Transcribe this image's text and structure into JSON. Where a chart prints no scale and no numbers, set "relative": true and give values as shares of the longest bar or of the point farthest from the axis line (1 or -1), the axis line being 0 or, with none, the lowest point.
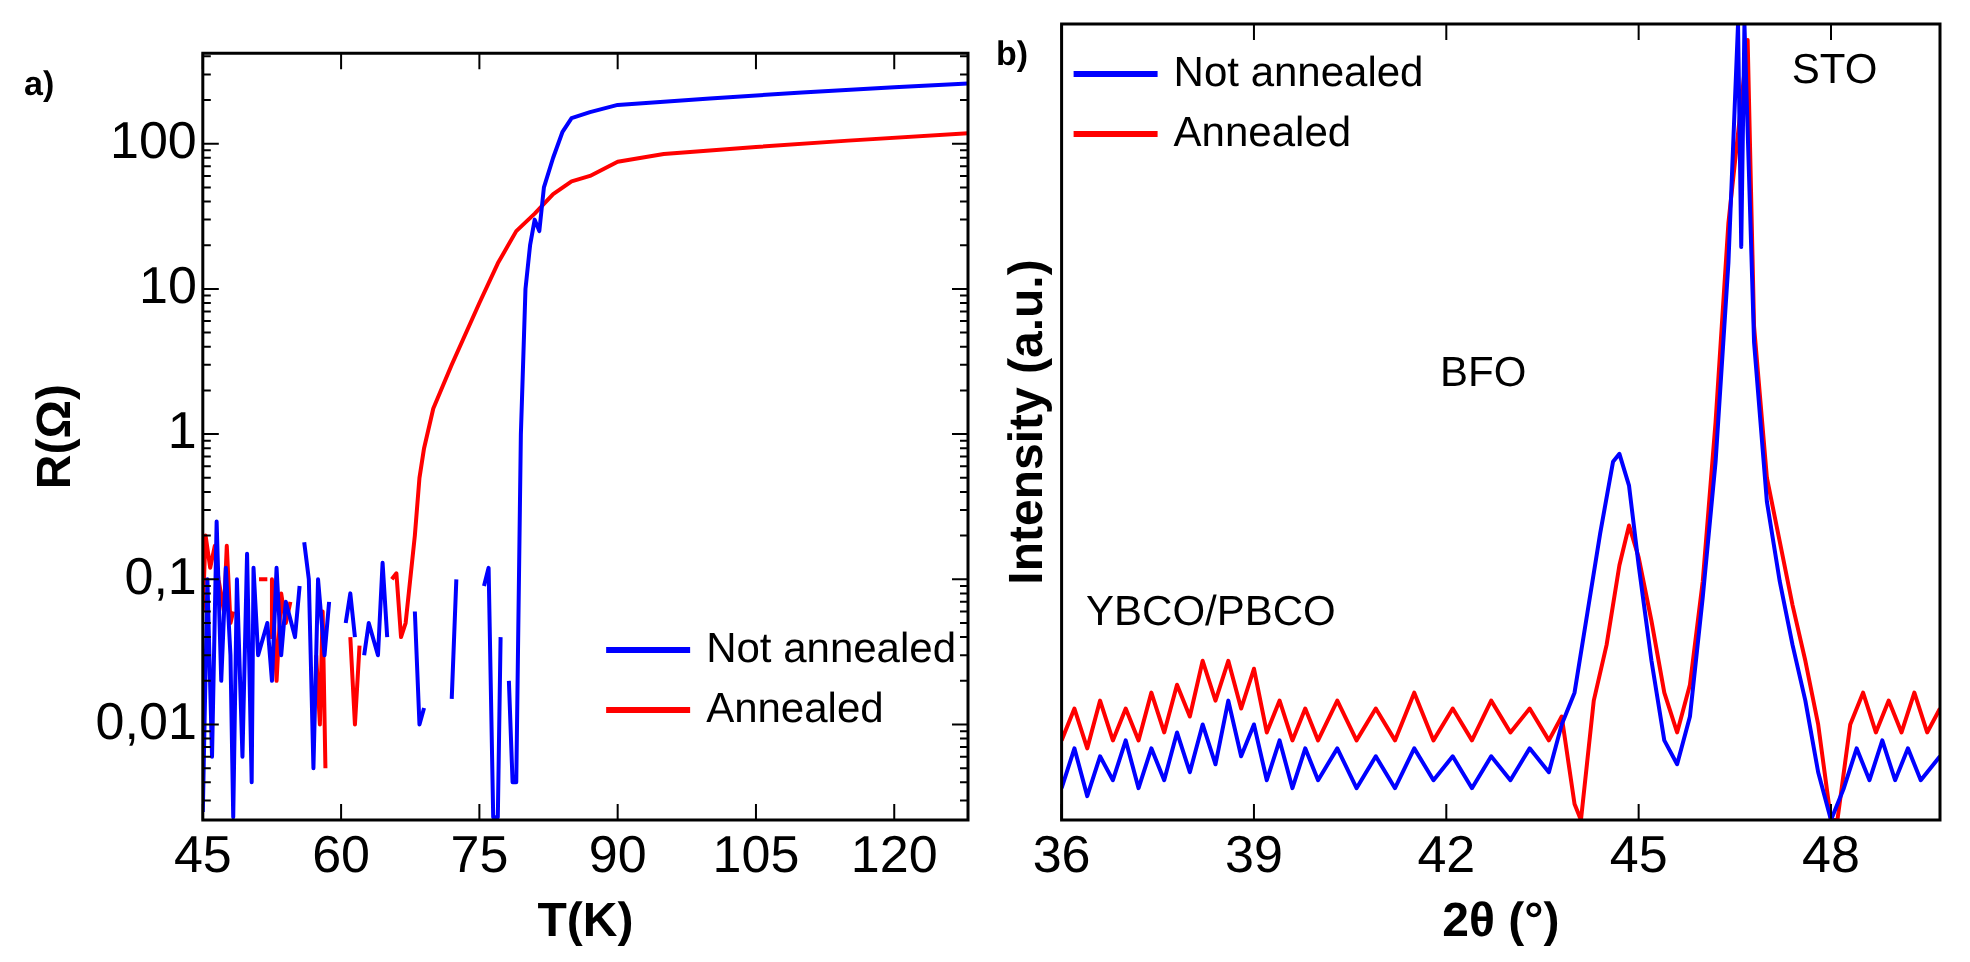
{
  "chart_data": [
    {
      "type": "line",
      "xlabel": "T(K)",
      "ylabel": "R(Ω)",
      "log": "y",
      "xlim": [
        45,
        128
      ],
      "xticks": [
        45,
        60,
        75,
        90,
        105,
        120
      ],
      "ylim": [
        0.0022,
        420
      ],
      "yticks": [
        {
          "value": 0.01,
          "label": "0,01"
        },
        {
          "value": 0.1,
          "label": "0,1"
        },
        1,
        10,
        100
      ],
      "legend": "bottom right",
      "grid": false,
      "marker": "none",
      "line_style": "solid",
      "annotations": [
        "a)"
      ],
      "series": [
        {
          "name": "Not annealed",
          "color": "#0000ff",
          "x": [
            45,
            45.5,
            46,
            46.5,
            47,
            47.5,
            48,
            48.3,
            48.7,
            49.3,
            49.8,
            50.3,
            50.5,
            51,
            52,
            52.5,
            53,
            53.5,
            54,
            55,
            55.5,
            55.7,
            56,
            56.5,
            57,
            57.5,
            58.2,
            58.7,
            59.5,
            60.5,
            61,
            61.5,
            62,
            62.5,
            63,
            64,
            64.5,
            65,
            66,
            68,
            68.5,
            69,
            70,
            72,
            72.5,
            74,
            75.5,
            76,
            76.5,
            77,
            77.3,
            77.8,
            78.2,
            78.6,
            79,
            79.5,
            80,
            80.5,
            81,
            81.5,
            82,
            83,
            84,
            85,
            87,
            90,
            100,
            110,
            120,
            128
          ],
          "values": [
            0.0025,
            0.1,
            0.006,
            0.25,
            0.02,
            0.12,
            0.03,
            0.0023,
            0.1,
            0.006,
            0.15,
            0.004,
            0.12,
            0.03,
            0.05,
            0.02,
            0.12,
            0.03,
            0.07,
            0.04,
            0.09,
            null,
            0.18,
            0.1,
            0.005,
            0.1,
            0.03,
            0.07,
            null,
            0.05,
            0.08,
            0.04,
            null,
            0.03,
            0.05,
            0.03,
            0.13,
            0.04,
            null,
            0.06,
            0.01,
            0.013,
            null,
            0.015,
            0.1,
            null,
            0.09,
            0.12,
            0.0023,
            0.0023,
            0.04,
            null,
            0.02,
            0.004,
            0.004,
            1,
            10,
            20,
            30,
            25,
            50,
            80,
            120,
            150,
            165,
            185,
            205,
            225,
            245,
            260
          ]
        },
        {
          "name": "Annealed",
          "color": "#ff0000",
          "x": [
            45,
            45.3,
            45.8,
            46.3,
            46.7,
            47.3,
            47.6,
            48,
            48.3,
            49,
            51.1,
            52,
            52.2,
            52.3,
            52.5,
            53,
            53.5,
            54,
            54.5,
            56,
            57.3,
            57.7,
            58,
            58.3,
            60,
            61,
            61.5,
            62,
            64,
            65.5,
            66,
            66.5,
            67,
            67.5,
            68,
            68.5,
            69,
            70,
            72,
            75,
            77,
            79,
            81,
            83,
            85,
            87,
            90,
            95,
            105,
            115,
            128
          ],
          "values": [
            0.06,
            0.2,
            0.12,
            0.17,
            0.1,
            0.06,
            0.17,
            0.05,
            0.06,
            null,
            0.1,
            0.1,
            null,
            0.04,
            0.1,
            0.02,
            0.08,
            0.05,
            0.07,
            null,
            0.03,
            0.01,
            0.06,
            0.005,
            null,
            0.04,
            0.01,
            0.035,
            null,
            0.1,
            0.11,
            0.04,
            0.05,
            0.1,
            0.2,
            0.5,
            0.8,
            1.5,
            3,
            8,
            15,
            25,
            33,
            45,
            55,
            60,
            75,
            85,
            95,
            105,
            118
          ]
        }
      ]
    },
    {
      "type": "line",
      "xlabel": "2θ (°)",
      "ylabel": "Intensity (a.u.)",
      "relative": true,
      "xlim": [
        36,
        49.7
      ],
      "xticks": [
        36,
        39,
        42,
        45,
        48
      ],
      "tick_labels": "x",
      "legend": "top left",
      "grid": false,
      "marker": "none",
      "line_style": "solid",
      "annotations": [
        "b)",
        "YBCO/PBCO",
        "BFO",
        "STO"
      ],
      "series": [
        {
          "name": "Not annealed",
          "color": "#0000ff",
          "x": [
            36,
            36.2,
            36.4,
            36.6,
            36.8,
            37,
            37.2,
            37.4,
            37.6,
            37.8,
            38,
            38.2,
            38.4,
            38.6,
            38.8,
            39,
            39.2,
            39.4,
            39.6,
            39.8,
            40,
            40.3,
            40.6,
            40.9,
            41.2,
            41.5,
            41.8,
            42.1,
            42.4,
            42.7,
            43,
            43.3,
            43.6,
            43.8,
            44,
            44.2,
            44.4,
            44.6,
            44.7,
            44.85,
            45,
            45.2,
            45.4,
            45.6,
            45.8,
            46,
            46.2,
            46.4,
            46.55,
            46.6,
            46.65,
            46.8,
            47,
            47.2,
            47.4,
            47.6,
            47.8,
            48,
            48.2,
            48.4,
            48.6,
            48.8,
            49,
            49.2,
            49.4,
            49.7
          ],
          "values": [
            0.04,
            0.09,
            0.03,
            0.08,
            0.05,
            0.1,
            0.04,
            0.09,
            0.05,
            0.11,
            0.06,
            0.12,
            0.07,
            0.15,
            0.08,
            0.12,
            0.05,
            0.1,
            0.04,
            0.09,
            0.05,
            0.09,
            0.04,
            0.08,
            0.04,
            0.09,
            0.05,
            0.08,
            0.04,
            0.08,
            0.05,
            0.09,
            0.06,
            0.12,
            0.16,
            0.26,
            0.36,
            0.45,
            0.46,
            0.42,
            0.32,
            0.2,
            0.1,
            0.07,
            0.13,
            0.28,
            0.45,
            0.7,
            1,
            0.72,
            1,
            0.6,
            0.4,
            0.3,
            0.22,
            0.15,
            0.06,
            0,
            0.04,
            0.09,
            0.05,
            0.1,
            0.05,
            0.09,
            0.05,
            0.08
          ]
        },
        {
          "name": "Annealed",
          "color": "#ff0000",
          "x": [
            36,
            36.2,
            36.4,
            36.6,
            36.8,
            37,
            37.2,
            37.4,
            37.6,
            37.8,
            38,
            38.2,
            38.4,
            38.6,
            38.8,
            39,
            39.2,
            39.4,
            39.6,
            39.8,
            40,
            40.3,
            40.6,
            40.9,
            41.2,
            41.5,
            41.8,
            42.1,
            42.4,
            42.7,
            43,
            43.3,
            43.6,
            43.8,
            44,
            44.1,
            44.3,
            44.5,
            44.7,
            44.85,
            45,
            45.2,
            45.4,
            45.6,
            45.8,
            46,
            46.2,
            46.4,
            46.6,
            46.7,
            46.8,
            47,
            47.2,
            47.4,
            47.6,
            47.8,
            48,
            48.1,
            48.3,
            48.5,
            48.7,
            48.9,
            49.1,
            49.3,
            49.5,
            49.7
          ],
          "values": [
            0.1,
            0.14,
            0.09,
            0.15,
            0.1,
            0.14,
            0.1,
            0.16,
            0.11,
            0.17,
            0.13,
            0.2,
            0.15,
            0.2,
            0.14,
            0.19,
            0.11,
            0.15,
            0.1,
            0.14,
            0.1,
            0.15,
            0.1,
            0.14,
            0.1,
            0.16,
            0.1,
            0.14,
            0.1,
            0.15,
            0.11,
            0.14,
            0.1,
            0.13,
            0.02,
            0,
            0.15,
            0.22,
            0.32,
            0.37,
            0.33,
            0.25,
            0.16,
            0.11,
            0.17,
            0.3,
            0.5,
            0.75,
            0.9,
            0.98,
            0.62,
            0.43,
            0.35,
            0.27,
            0.2,
            0.12,
            0,
            0,
            0.12,
            0.16,
            0.11,
            0.15,
            0.11,
            0.16,
            0.11,
            0.14
          ]
        }
      ]
    }
  ]
}
